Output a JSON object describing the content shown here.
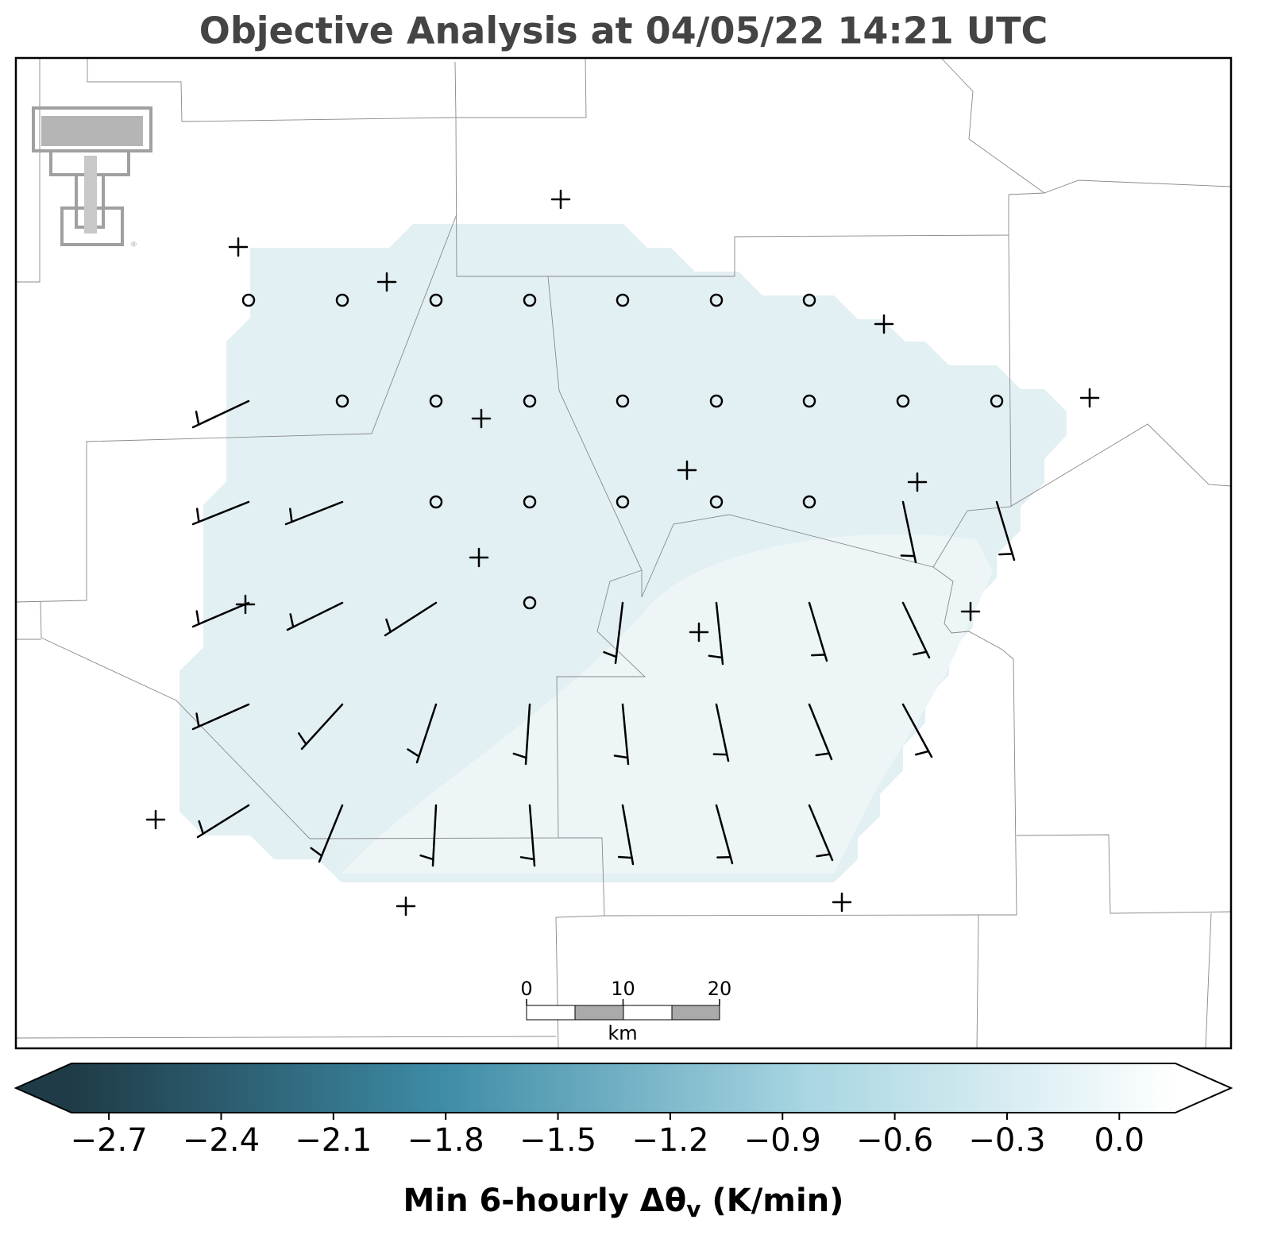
{
  "title": "Objective Analysis at 04/05/22 14:21 UTC",
  "colorbar": {
    "label": [
      "Min 6-hourly Δθ",
      "v",
      " (K/min)"
    ],
    "clim": [
      -2.8,
      0.15
    ],
    "colors": [
      "#1f3b47",
      "#3d8ba6",
      "#a8d6e2",
      "#ffffff"
    ],
    "ticks": [
      {
        "value": -2.7,
        "label": "−2.7"
      },
      {
        "value": -2.4,
        "label": "−2.4"
      },
      {
        "value": -2.1,
        "label": "−2.1"
      },
      {
        "value": -1.8,
        "label": "−1.8"
      },
      {
        "value": -1.5,
        "label": "−1.5"
      },
      {
        "value": -1.2,
        "label": "−1.2"
      },
      {
        "value": -0.9,
        "label": "−0.9"
      },
      {
        "value": -0.6,
        "label": "−0.6"
      },
      {
        "value": -0.3,
        "label": "−0.3"
      },
      {
        "value": 0.0,
        "label": "0.0"
      }
    ]
  },
  "scale_bar": {
    "xlim": [
      0,
      20
    ],
    "ticks": [
      0,
      10,
      20
    ],
    "unit": "km"
  }
}
